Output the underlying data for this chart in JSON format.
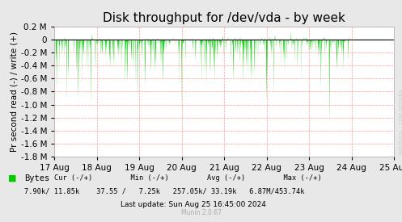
{
  "title": "Disk throughput for /dev/vda - by week",
  "ylabel": "Pr second read (-) / write (+)",
  "background_color": "#e8e8e8",
  "plot_bg_color": "#ffffff",
  "grid_color": "#ff9999",
  "title_fontsize": 11,
  "axis_fontsize": 7.5,
  "tick_fontsize": 7.5,
  "xmin": 0,
  "xmax": 604800,
  "ymin": -1800000,
  "ymax": 200000,
  "yticks": [
    -1800000,
    -1600000,
    -1400000,
    -1200000,
    -1000000,
    -800000,
    -600000,
    -400000,
    -200000,
    0,
    200000
  ],
  "ytick_labels": [
    "-1.8 M",
    "-1.6 M",
    "-1.4 M",
    "-1.2 M",
    "-1.0 M",
    "-0.8 M",
    "-0.6 M",
    "-0.4 M",
    "-0.2 M",
    "0",
    "0.2 M"
  ],
  "xtick_positions": [
    0,
    86400,
    172800,
    259200,
    345600,
    432000,
    518400,
    604800,
    691200
  ],
  "xtick_labels": [
    "17 Aug",
    "18 Aug",
    "19 Aug",
    "20 Aug",
    "21 Aug",
    "22 Aug",
    "23 Aug",
    "24 Aug",
    "25 Aug"
  ],
  "line_color": "#00cc00",
  "fill_color": "#00cc00",
  "fill_alpha": 0.85,
  "zero_line_color": "#000000",
  "legend_label": "Bytes",
  "legend_color": "#00cc00",
  "last_update": "Last update: Sun Aug 25 16:45:00 2024",
  "munin_text": "Munin 2.0.67",
  "rrdtool_text": "RRDTOOL / TOBI OETIKER",
  "seed": 42
}
